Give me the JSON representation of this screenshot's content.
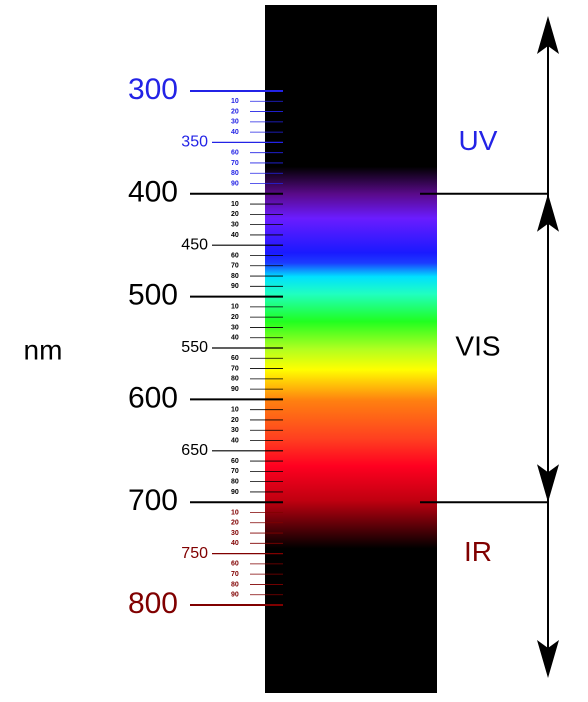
{
  "scale": {
    "unit": "nm",
    "major": [
      300,
      400,
      500,
      600,
      700,
      800
    ],
    "half": [
      350,
      450,
      550,
      650,
      750
    ],
    "minor": [
      10,
      20,
      30,
      40,
      60,
      70,
      80,
      90
    ]
  },
  "regions": [
    {
      "label": "UV",
      "color": "#2323e6",
      "from": 300,
      "to": 400
    },
    {
      "label": "VIS",
      "color": "#000000",
      "from": 400,
      "to": 700
    },
    {
      "label": "IR",
      "color": "#800000",
      "from": 700,
      "to": 800
    }
  ]
}
